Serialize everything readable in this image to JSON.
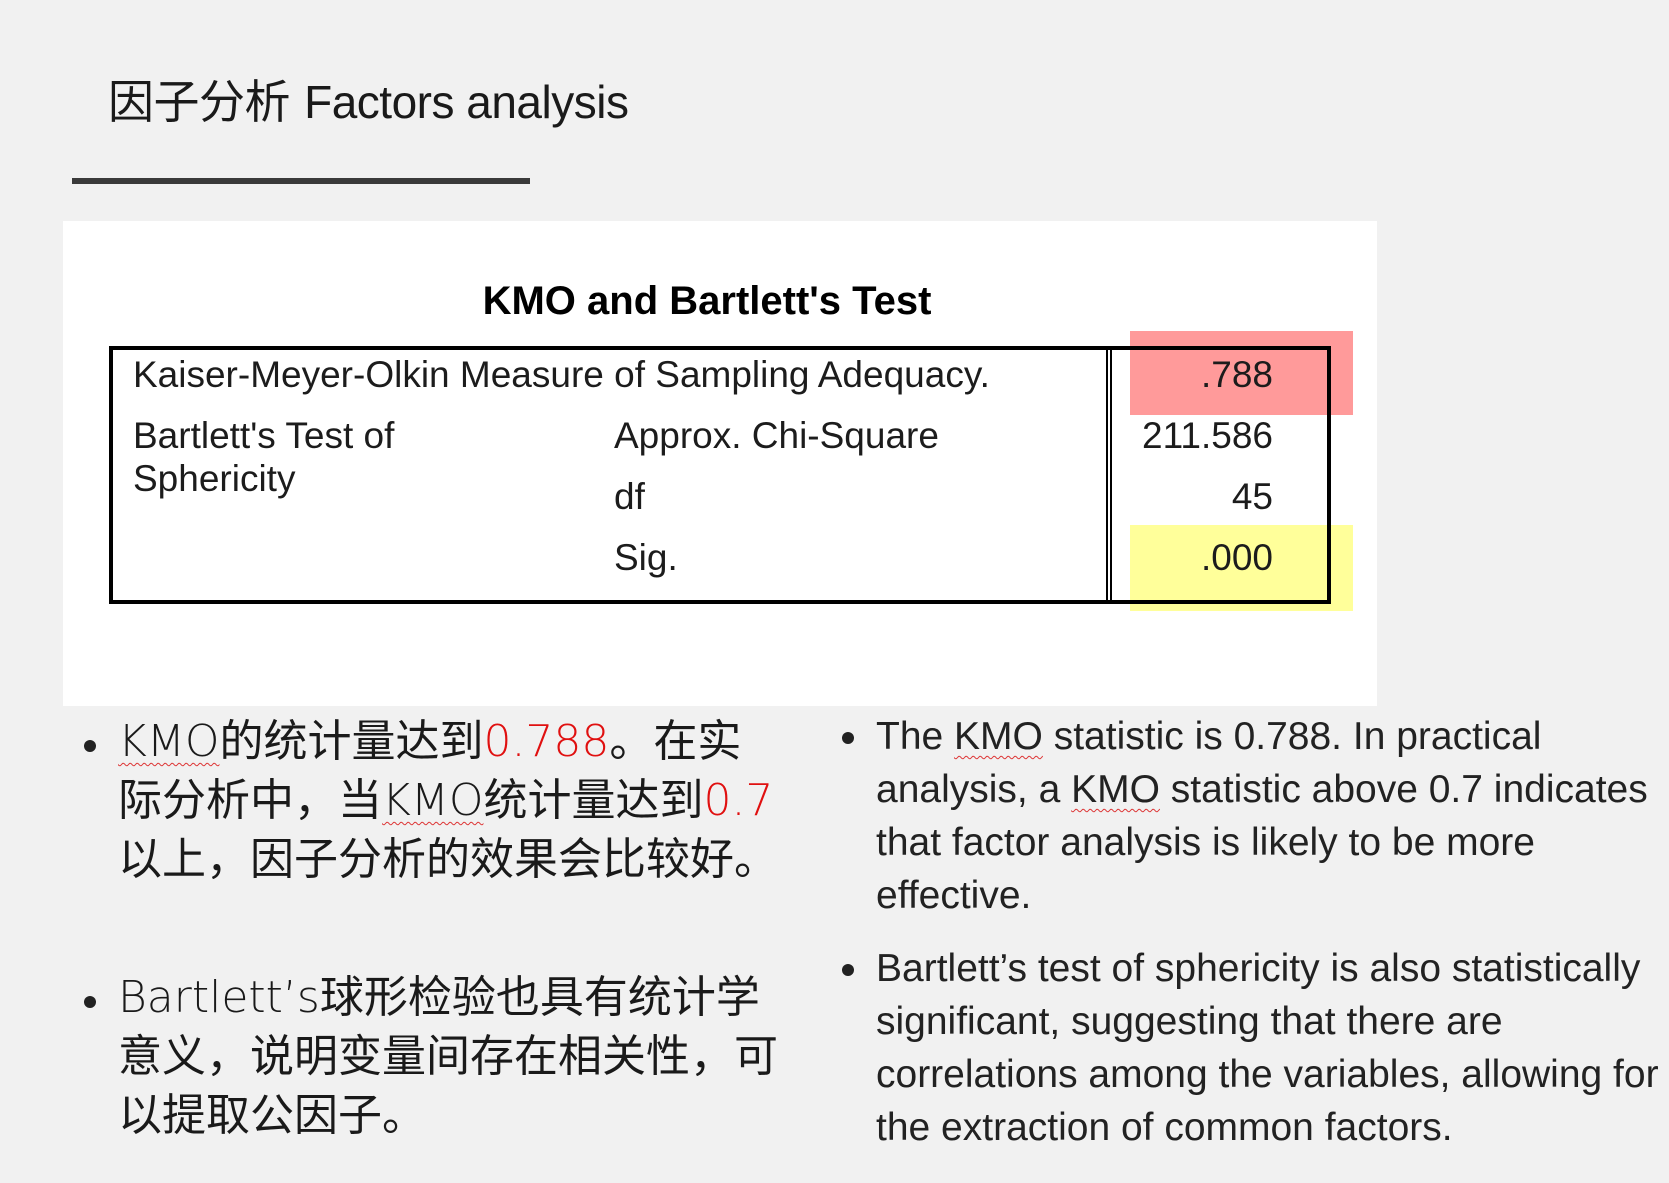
{
  "header": {
    "title_zh": "因子分析",
    "title_en": "Factors analysis"
  },
  "table": {
    "title": "KMO and Bartlett's Test",
    "rows": [
      {
        "label": "Kaiser-Meyer-Olkin Measure of Sampling Adequacy.",
        "sub": "",
        "value": ".788"
      },
      {
        "label": "Bartlett's Test of",
        "label2": "Sphericity",
        "sub": "Approx. Chi-Square",
        "value": "211.586"
      },
      {
        "label": "",
        "sub": "df",
        "value": "45"
      },
      {
        "label": "",
        "sub": "Sig.",
        "value": ".000"
      }
    ],
    "highlight_colors": {
      "kmo": "#ff9a9a",
      "sig": "#ffff9a"
    }
  },
  "bullets_zh": {
    "b1_kmo": "KMO",
    "b1_a": "的统计量达到",
    "b1_v1": "0.788",
    "b1_b": "。在实际分析中，当",
    "b1_kmo2": "KMO",
    "b1_c": "统计量达到",
    "b1_v2": "0.7",
    "b1_d": "以上，因子分析的效果会比较好。",
    "b2": "Bartlett’s球形检验也具有统计学意义，说明变量间存在相关性，可以提取公因子。"
  },
  "bullets_en": {
    "b1_a": "The ",
    "b1_kmo": "KMO",
    "b1_b": " statistic is 0.788. In practical analysis, a ",
    "b1_kmo2": "KMO",
    "b1_c": " statistic above 0.7 indicates that factor analysis is likely to be more effective.",
    "b2": "Bartlett’s test of sphericity is also statistically significant, suggesting that there are correlations among the variables, allowing for the extraction of common factors."
  },
  "accent_color": "#e01010"
}
